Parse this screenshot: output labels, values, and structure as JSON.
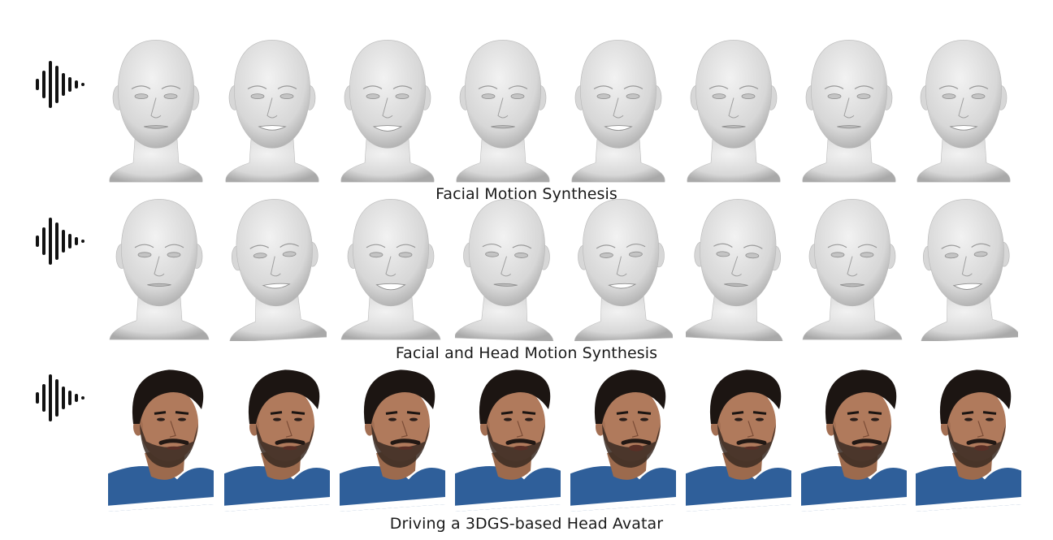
{
  "rows": [
    {
      "caption": "Facial Motion Synthesis",
      "kind": "mesh",
      "frames": [
        {
          "mouth": 0.2
        },
        {
          "mouth": 0.55
        },
        {
          "mouth": 0.75
        },
        {
          "mouth": 0.15
        },
        {
          "mouth": 0.6
        },
        {
          "mouth": 0.1
        },
        {
          "mouth": 0.15
        },
        {
          "mouth": 0.55
        }
      ]
    },
    {
      "caption": "Facial and Head Motion Synthesis",
      "kind": "mesh-pose",
      "frames": [
        {
          "mouth": 0.15,
          "tilt": 0
        },
        {
          "mouth": 0.55,
          "tilt": -3
        },
        {
          "mouth": 0.85,
          "tilt": 0
        },
        {
          "mouth": 0.12,
          "tilt": 2
        },
        {
          "mouth": 0.55,
          "tilt": -2
        },
        {
          "mouth": 0.15,
          "tilt": 3
        },
        {
          "mouth": 0.2,
          "tilt": 0
        },
        {
          "mouth": 0.8,
          "tilt": -3
        }
      ]
    },
    {
      "caption": "Driving a 3DGS-based Head Avatar",
      "kind": "avatar",
      "frames": [
        {
          "mouth": 0.2
        },
        {
          "mouth": 0.3
        },
        {
          "mouth": 0.2
        },
        {
          "mouth": 0.35
        },
        {
          "mouth": 0.6
        },
        {
          "mouth": 0.2
        },
        {
          "mouth": 0.25
        },
        {
          "mouth": 0.5
        }
      ]
    }
  ],
  "colors": {
    "mesh": "#d7d7d7",
    "mesh_shade": "#a9a9a9",
    "skin": "#b07a5c",
    "hair": "#1c1512",
    "shirt": "#2f5f9a",
    "audio": "#111111"
  }
}
